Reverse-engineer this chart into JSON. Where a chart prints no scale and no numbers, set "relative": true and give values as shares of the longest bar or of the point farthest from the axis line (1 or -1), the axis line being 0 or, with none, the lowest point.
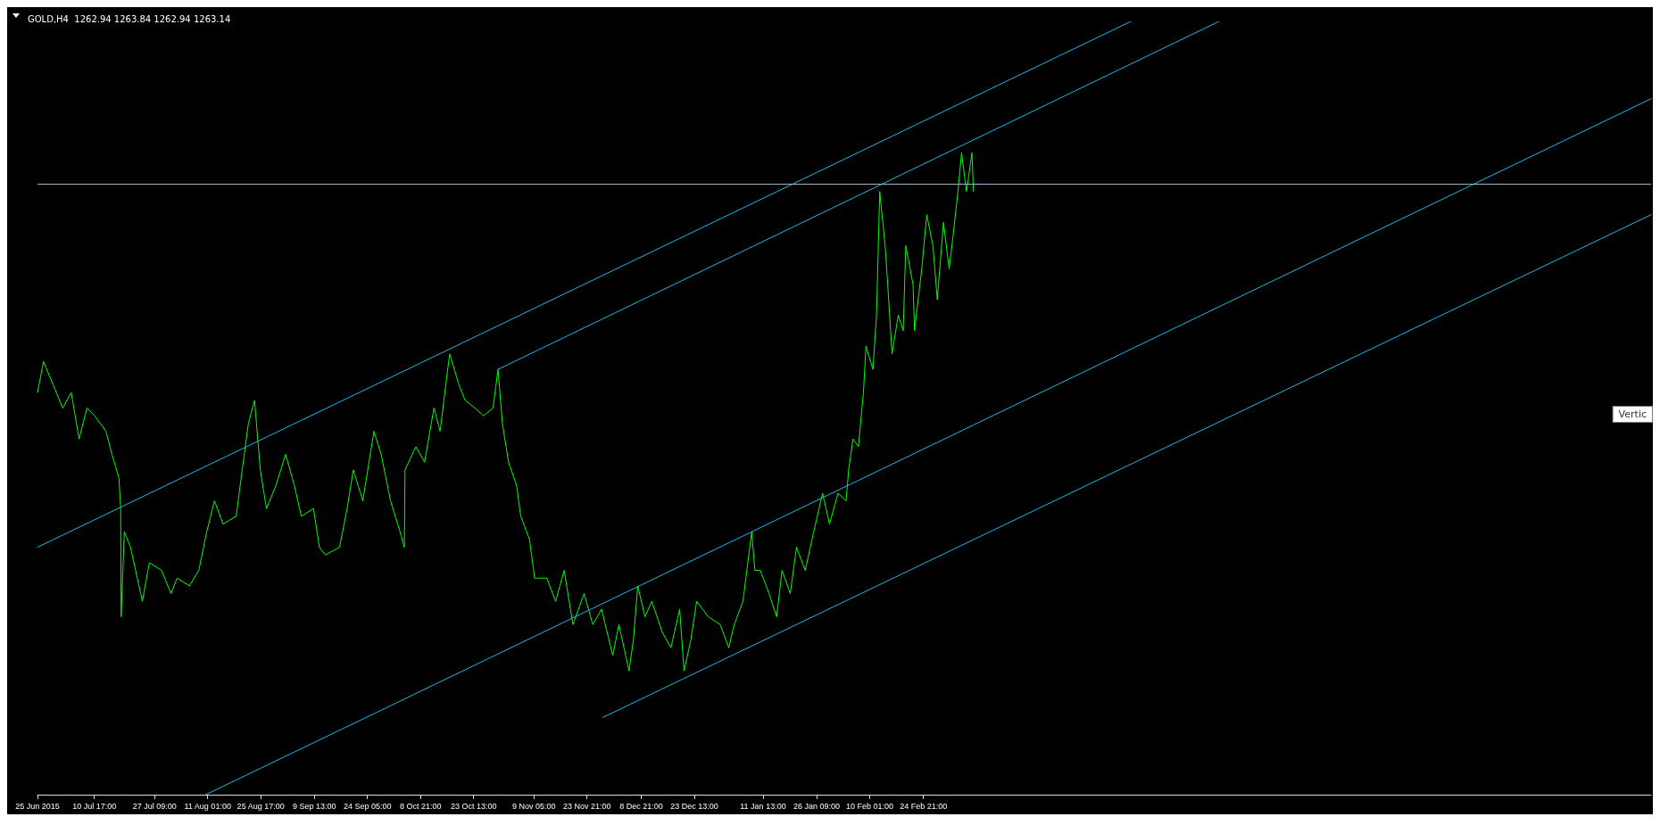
{
  "chart_data": {
    "type": "line",
    "title": "GOLD,H4  1262.94 1263.84 1262.94 1263.14",
    "relative": true,
    "grid": false,
    "marker": "none",
    "line_style": "solid",
    "annotations": [
      "Vertic"
    ],
    "xlim": [
      "2015-06-25T00:00",
      "2016-09-13T00:00"
    ],
    "xticks": [
      {
        "value": "2015-06-25T00:00",
        "label": "25 Jun 2015"
      },
      {
        "value": "2015-07-10T17:00",
        "label": "10 Jul 17:00"
      },
      {
        "value": "2015-07-27T09:00",
        "label": "27 Jul 09:00"
      },
      {
        "value": "2015-08-11T01:00",
        "label": "11 Aug 01:00"
      },
      {
        "value": "2015-08-25T17:00",
        "label": "25 Aug 17:00"
      },
      {
        "value": "2015-09-09T13:00",
        "label": "9 Sep 13:00"
      },
      {
        "value": "2015-09-24T05:00",
        "label": "24 Sep 05:00"
      },
      {
        "value": "2015-10-08T21:00",
        "label": "8 Oct 21:00"
      },
      {
        "value": "2015-10-23T13:00",
        "label": "23 Oct 13:00"
      },
      {
        "value": "2015-11-09T05:00",
        "label": "9 Nov 05:00"
      },
      {
        "value": "2015-11-23T21:00",
        "label": "23 Nov 21:00"
      },
      {
        "value": "2015-12-08T21:00",
        "label": "8 Dec 21:00"
      },
      {
        "value": "2015-12-23T13:00",
        "label": "23 Dec 13:00"
      },
      {
        "value": "2016-01-11T13:00",
        "label": "11 Jan 13:00"
      },
      {
        "value": "2016-01-26T09:00",
        "label": "26 Jan 09:00"
      },
      {
        "value": "2016-02-10T01:00",
        "label": "10 Feb 01:00"
      },
      {
        "value": "2016-02-24T21:00",
        "label": "24 Feb 21:00"
      }
    ],
    "ref_lines": [
      {
        "axis": "y",
        "value": 0.79,
        "label": null,
        "color": "#9fb3c8"
      }
    ],
    "series": [
      {
        "color": "#00ff00",
        "x": [
          "2015-06-25T00:00",
          "2015-06-26T16:00",
          "2015-06-29T08:00",
          "2015-07-01T23:00",
          "2015-07-04T08:00",
          "2015-07-06T12:00",
          "2015-07-08T16:00",
          "2015-07-10T19:00",
          "2015-07-13T22:00",
          "2015-07-15T14:00",
          "2015-07-17T12:00",
          "2015-07-18T00:00",
          "2015-07-18T03:00",
          "2015-07-19T00:00",
          "2015-07-20T17:00",
          "2015-07-24T00:00",
          "2015-07-25T22:00",
          "2015-07-29T07:00",
          "2015-07-31T22:00",
          "2015-08-02T14:00",
          "2015-08-06T00:00",
          "2015-08-08T14:00",
          "2015-08-10T19:00",
          "2015-08-12T22:00",
          "2015-08-15T07:00",
          "2015-08-18T22:00",
          "2015-08-20T14:00",
          "2015-08-22T07:00",
          "2015-08-24T00:00",
          "2015-08-25T14:00",
          "2015-08-27T07:00",
          "2015-08-29T22:00",
          "2015-09-01T14:00",
          "2015-09-04T00:00",
          "2015-09-05T22:00",
          "2015-09-09T07:00",
          "2015-09-10T22:00",
          "2015-09-12T14:00",
          "2015-09-16T12:00",
          "2015-09-18T14:00",
          "2015-09-20T07:00",
          "2015-09-22T22:00",
          "2015-09-26T00:00",
          "2015-09-28T00:00",
          "2015-09-30T14:00",
          "2015-10-03T05:00",
          "2015-10-04T10:00",
          "2015-10-04T14:00",
          "2015-10-07T14:00",
          "2015-10-10T00:00",
          "2015-10-12T14:00",
          "2015-10-14T07:00",
          "2015-10-16T22:00",
          "2015-10-19T12:00",
          "2015-10-21T05:00",
          "2015-10-23T22:00",
          "2015-10-26T07:00",
          "2015-10-28T22:00",
          "2015-10-30T07:00",
          "2015-10-31T12:00",
          "2015-11-02T05:00",
          "2015-11-04T10:00",
          "2015-11-05T14:00",
          "2015-11-08T00:00",
          "2015-11-09T10:00",
          "2015-11-12T19:00",
          "2015-11-15T05:00",
          "2015-11-17T14:00",
          "2015-11-20T00:00",
          "2015-11-23T02:00",
          "2015-11-25T12:00",
          "2015-11-27T22:00",
          "2015-12-01T00:00",
          "2015-12-02T17:00",
          "2015-12-05T12:00",
          "2015-12-06T17:00",
          "2015-12-07T22:00",
          "2015-12-09T22:00",
          "2015-12-11T19:00",
          "2015-12-14T17:00",
          "2015-12-17T02:00",
          "2015-12-19T12:00",
          "2015-12-20T17:00",
          "2015-12-22T14:00",
          "2015-12-24T05:00",
          "2015-12-27T10:00",
          "2015-12-30T17:00",
          "2016-01-02T02:00",
          "2016-01-03T14:00",
          "2016-01-06T00:00",
          "2016-01-08T10:00",
          "2016-01-09T07:00",
          "2016-01-10T19:00",
          "2016-01-13T05:00",
          "2016-01-15T07:00",
          "2016-01-16T19:00",
          "2016-01-19T02:00",
          "2016-01-20T19:00",
          "2016-01-23T05:00",
          "2016-01-25T02:00",
          "2016-01-28T00:00",
          "2016-01-29T22:00",
          "2016-02-01T07:00",
          "2016-02-03T12:00",
          "2016-02-04T05:00",
          "2016-02-05T10:00",
          "2016-02-06T22:00",
          "2016-02-08T07:00",
          "2016-02-09T00:00",
          "2016-02-10T22:00",
          "2016-02-11T22:00",
          "2016-02-12T19:00",
          "2016-02-14T07:00",
          "2016-02-15T00:00",
          "2016-02-16T05:00",
          "2016-02-17T22:00",
          "2016-02-19T07:00",
          "2016-02-20T00:00",
          "2016-02-22T00:00",
          "2016-02-22T10:00",
          "2016-02-24T10:00",
          "2016-02-25T19:00",
          "2016-02-27T12:00",
          "2016-02-28T17:00",
          "2016-03-01T10:00",
          "2016-03-03T00:00",
          "2016-03-04T00:00",
          "2016-03-05T10:00",
          "2016-03-06T10:00",
          "2016-03-07T19:00",
          "2016-03-09T07:00",
          "2016-03-09T17:00"
        ],
        "values": [
          0.52,
          0.56,
          0.53,
          0.5,
          0.52,
          0.46,
          0.5,
          0.49,
          0.47,
          0.44,
          0.41,
          0.37,
          0.23,
          0.34,
          0.32,
          0.25,
          0.3,
          0.29,
          0.26,
          0.28,
          0.27,
          0.29,
          0.34,
          0.38,
          0.35,
          0.36,
          0.42,
          0.48,
          0.51,
          0.42,
          0.37,
          0.4,
          0.44,
          0.4,
          0.36,
          0.37,
          0.32,
          0.31,
          0.32,
          0.37,
          0.42,
          0.38,
          0.47,
          0.44,
          0.38,
          0.34,
          0.32,
          0.42,
          0.45,
          0.43,
          0.5,
          0.47,
          0.57,
          0.53,
          0.51,
          0.5,
          0.49,
          0.5,
          0.55,
          0.48,
          0.43,
          0.4,
          0.36,
          0.33,
          0.28,
          0.28,
          0.25,
          0.29,
          0.22,
          0.26,
          0.22,
          0.24,
          0.18,
          0.22,
          0.16,
          0.2,
          0.27,
          0.23,
          0.25,
          0.21,
          0.19,
          0.24,
          0.16,
          0.2,
          0.25,
          0.23,
          0.22,
          0.19,
          0.22,
          0.25,
          0.34,
          0.29,
          0.29,
          0.26,
          0.23,
          0.29,
          0.26,
          0.32,
          0.29,
          0.33,
          0.39,
          0.35,
          0.39,
          0.38,
          0.42,
          0.46,
          0.45,
          0.52,
          0.58,
          0.55,
          0.62,
          0.78,
          0.71,
          0.66,
          0.57,
          0.62,
          0.6,
          0.71,
          0.66,
          0.6,
          0.68,
          0.75,
          0.71,
          0.64,
          0.74,
          0.68,
          0.72,
          0.78,
          0.83,
          0.78,
          0.83,
          0.78
        ]
      },
      {
        "color": "#1fb6e8",
        "x": [
          "2015-06-25T00:00",
          "2016-04-22T05:00"
        ],
        "values": [
          0.32,
          1.0
        ]
      },
      {
        "color": "#1fb6e8",
        "x": [
          "2015-10-30T07:00",
          "2016-05-16T14:00"
        ],
        "values": [
          0.55,
          1.0
        ]
      },
      {
        "color": "#1fb6e8",
        "x": [
          "2015-08-10T12:00",
          "2016-09-13T00:00"
        ],
        "values": [
          0.0,
          0.9
        ]
      },
      {
        "color": "#1fb6e8",
        "x": [
          "2015-11-28T07:00",
          "2016-09-13T00:00"
        ],
        "values": [
          0.1,
          0.75
        ]
      }
    ]
  }
}
